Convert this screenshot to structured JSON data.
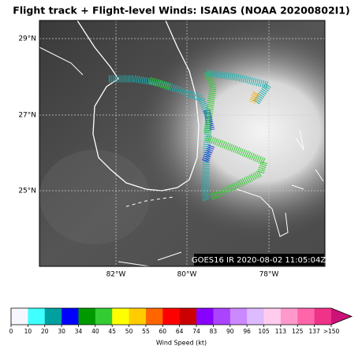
{
  "title": "Flight track + Flight-level Winds: ISAIAS (NOAA 20200802I1)",
  "lat_labels": [
    "29°N",
    "27°N",
    "25°N"
  ],
  "lon_labels": [
    "82°W",
    "80°W",
    "78°W"
  ],
  "annotation": "GOES16 IR 2020-08-02 11:05:04Z",
  "colorbar": {
    "label": "Wind Speed (kt)",
    "ticks": [
      "0",
      "10",
      "20",
      "30",
      "34",
      "40",
      "45",
      "50",
      "55",
      "60",
      "64",
      "74",
      "83",
      "90",
      "96",
      "105",
      "113",
      "125",
      "137",
      ">150"
    ],
    "colors": [
      "#f6f6ff",
      "#40ffff",
      "#00a0a0",
      "#0000ff",
      "#009900",
      "#33cc33",
      "#ffff00",
      "#ffcc00",
      "#ff6600",
      "#ff0000",
      "#cc0000",
      "#8800ff",
      "#aa44ff",
      "#cc88ff",
      "#ddbbff",
      "#ffccee",
      "#ff99cc",
      "#ff66aa",
      "#ee3388",
      "#cc1177"
    ]
  }
}
